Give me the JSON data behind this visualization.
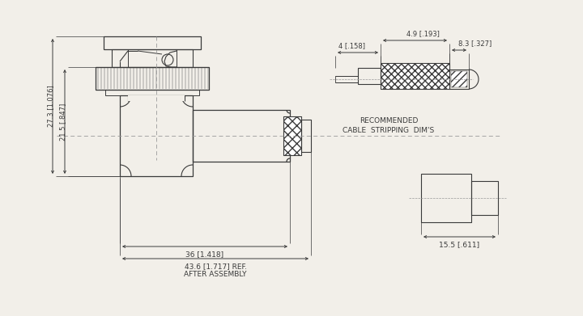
{
  "background_color": "#f2efe9",
  "line_color": "#3a3a3a",
  "dim_color": "#3a3a3a",
  "fig_width": 7.2,
  "fig_height": 3.91,
  "dpi": 100,
  "annotations": {
    "dim_27_3": "27.3 [1.076]",
    "dim_21_5": "21.5 [.847]",
    "dim_36": "36 [1.418]",
    "dim_43_6": "43.6 [1.717] REF.",
    "dim_43_6b": "AFTER ASSEMBLY",
    "dim_4": "4 [.158]",
    "dim_4_9": "4.9 [.193]",
    "dim_8_3": "8.3 [.327]",
    "dim_15_5": "15.5 [.611]",
    "label_cable_1": "RECOMMENDED",
    "label_cable_2": "CABLE  STRIPPING  DIM'S"
  }
}
